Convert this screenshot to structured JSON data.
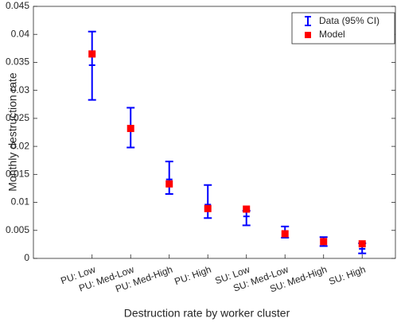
{
  "chart_data": {
    "type": "errorbar",
    "xlabel": "Destruction rate by worker cluster",
    "ylabel": "Monthly destruction rate",
    "categories": [
      "PU: Low",
      "PU: Med-Low",
      "PU: Med-High",
      "PU: High",
      "SU: Low",
      "SU: Med-Low",
      "SU: Med-High",
      "SU: High"
    ],
    "series": [
      {
        "name": "Data (95% CI)",
        "color": "#0000ff",
        "values": [
          0.0345,
          0.0233,
          0.0141,
          0.0096,
          0.0075,
          0.0046,
          0.003,
          0.0017
        ],
        "lower": [
          0.0283,
          0.0198,
          0.0115,
          0.0072,
          0.0059,
          0.0037,
          0.0022,
          0.0009
        ],
        "upper": [
          0.0405,
          0.0269,
          0.0173,
          0.0131,
          0.0085,
          0.0057,
          0.0038,
          0.0027
        ]
      },
      {
        "name": "Model",
        "color": "#ff0000",
        "values": [
          0.0365,
          0.0232,
          0.0133,
          0.0089,
          0.0088,
          0.0044,
          0.003,
          0.0026
        ]
      }
    ],
    "ylim": [
      0,
      0.045
    ],
    "yticks": [
      0,
      0.005,
      0.01,
      0.015,
      0.02,
      0.025,
      0.03,
      0.035,
      0.04,
      0.045
    ],
    "legend": "top-right"
  }
}
